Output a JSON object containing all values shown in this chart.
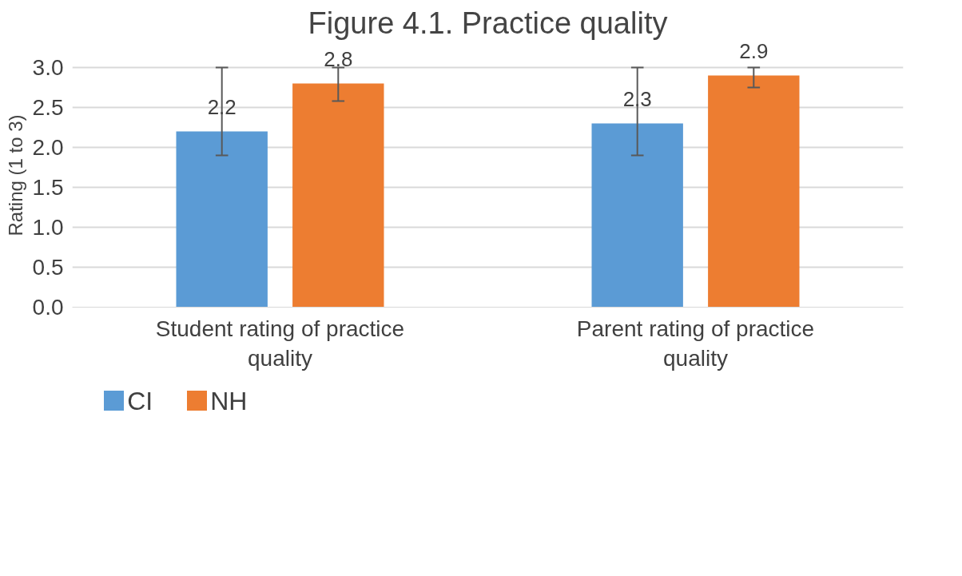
{
  "chart_data": {
    "type": "bar",
    "title": "Figure 4.1. Practice quality",
    "ylabel": "Rating (1 to 3)",
    "categories": [
      "Student rating of practice quality",
      "Parent rating of practice quality"
    ],
    "series": [
      {
        "name": "CI",
        "color": "#5b9bd5",
        "values": [
          2.2,
          2.3
        ],
        "errors": [
          [
            1.9,
            3.0
          ],
          [
            1.9,
            3.0
          ]
        ]
      },
      {
        "name": "NH",
        "color": "#ed7d31",
        "values": [
          2.8,
          2.9
        ],
        "errors": [
          [
            2.58,
            3.0
          ],
          [
            2.75,
            3.0
          ]
        ]
      }
    ],
    "ylim": [
      0,
      3.0
    ],
    "yticks": [
      {
        "value": 0,
        "label": "0.0"
      },
      {
        "value": 0.5,
        "label": "0.5"
      },
      {
        "value": 1,
        "label": "1.0"
      },
      {
        "value": 1.5,
        "label": "1.5"
      },
      {
        "value": 2,
        "label": "2.0"
      },
      {
        "value": 2.5,
        "label": "2.5"
      },
      {
        "value": 3,
        "label": "3.0"
      }
    ],
    "grid": "y",
    "legend": "bottom left",
    "data_labels": true
  }
}
